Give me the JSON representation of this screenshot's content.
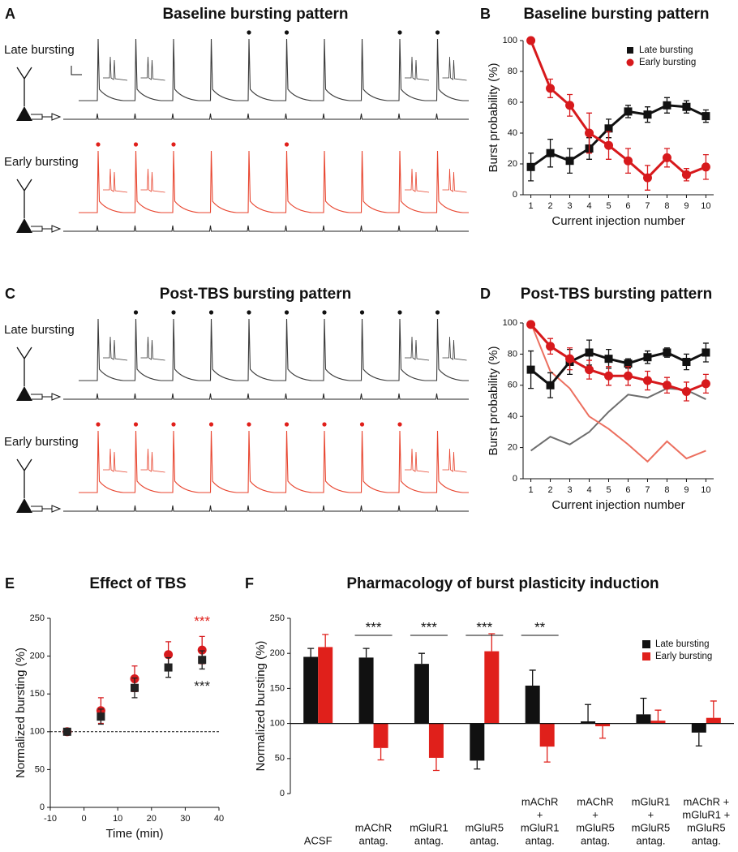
{
  "chart_data": [
    {
      "type": "traces",
      "panel": "A",
      "title": "Baseline bursting pattern",
      "injections": 10,
      "rows": [
        {
          "label": "Late bursting",
          "color": "#3a3a3a",
          "dot_color": "#111111",
          "bursts": [
            5,
            6,
            9,
            10
          ]
        },
        {
          "label": "Early bursting",
          "color": "#e8452f",
          "dot_color": "#e0201b",
          "bursts": [
            1,
            2,
            3,
            6
          ]
        }
      ]
    },
    {
      "type": "line",
      "panel": "B",
      "title": "Baseline bursting pattern",
      "x_label": "Current injection number",
      "y_label": "Burst probability (%)",
      "x": [
        1,
        2,
        3,
        4,
        5,
        6,
        7,
        8,
        9,
        10
      ],
      "xlim": [
        0.6,
        10.4
      ],
      "xticks": [
        1,
        2,
        3,
        4,
        5,
        6,
        7,
        8,
        9,
        10
      ],
      "ylim": [
        0,
        100
      ],
      "yticks": [
        0,
        20,
        40,
        60,
        80,
        100
      ],
      "legend": "upper right",
      "series": [
        {
          "name": "Late bursting",
          "color": "#111111",
          "marker": "square",
          "values": [
            18,
            27,
            22,
            30,
            43,
            54,
            52,
            58,
            57,
            51
          ],
          "errors": [
            9,
            9,
            8,
            7,
            6,
            4,
            5,
            5,
            4,
            4
          ]
        },
        {
          "name": "Early bursting",
          "color": "#d7191c",
          "marker": "circle",
          "values": [
            100,
            69,
            58,
            40,
            32,
            22,
            11,
            24,
            13,
            18
          ],
          "errors": [
            0,
            6,
            7,
            13,
            9,
            8,
            8,
            6,
            4,
            8
          ]
        }
      ]
    },
    {
      "type": "traces",
      "panel": "C",
      "title": "Post-TBS bursting pattern",
      "injections": 10,
      "rows": [
        {
          "label": "Late bursting",
          "color": "#3a3a3a",
          "dot_color": "#111111",
          "bursts": [
            2,
            3,
            4,
            5,
            6,
            7,
            8,
            9,
            10
          ]
        },
        {
          "label": "Early bursting",
          "color": "#e8452f",
          "dot_color": "#e0201b",
          "bursts": [
            1,
            2,
            3,
            4,
            5,
            6,
            7,
            8,
            9
          ]
        }
      ]
    },
    {
      "type": "line",
      "panel": "D",
      "title": "Post-TBS bursting pattern",
      "x_label": "Current injection number",
      "y_label": "Burst probability (%)",
      "x": [
        1,
        2,
        3,
        4,
        5,
        6,
        7,
        8,
        9,
        10
      ],
      "xlim": [
        0.6,
        10.4
      ],
      "xticks": [
        1,
        2,
        3,
        4,
        5,
        6,
        7,
        8,
        9,
        10
      ],
      "ylim": [
        0,
        100
      ],
      "yticks": [
        0,
        20,
        40,
        60,
        80,
        100
      ],
      "series": [
        {
          "color": "#6e6e6e",
          "marker": "none",
          "values": [
            18,
            27,
            22,
            30,
            43,
            54,
            52,
            58,
            57,
            51
          ]
        },
        {
          "color": "#ec6f5f",
          "marker": "none",
          "values": [
            100,
            69,
            58,
            40,
            32,
            22,
            11,
            24,
            13,
            18
          ]
        },
        {
          "color": "#111111",
          "marker": "square",
          "values": [
            70,
            60,
            75,
            81,
            77,
            74,
            78,
            81,
            75,
            81
          ],
          "errors": [
            12,
            8,
            8,
            8,
            6,
            3,
            4,
            3,
            5,
            6
          ]
        },
        {
          "color": "#d7191c",
          "marker": "circle",
          "values": [
            99,
            85,
            77,
            70,
            66,
            66,
            63,
            60,
            56,
            61
          ],
          "errors": [
            0,
            5,
            7,
            6,
            6,
            6,
            6,
            5,
            6,
            6
          ]
        }
      ]
    },
    {
      "type": "scatter",
      "panel": "E",
      "title": "Effect of TBS",
      "x_label": "Time (min)",
      "y_label": "Normalized bursting (%)",
      "x": [
        -5,
        5,
        15,
        25,
        35
      ],
      "xlim": [
        -10,
        40
      ],
      "xticks": [
        -10,
        0,
        10,
        20,
        30,
        40
      ],
      "ylim": [
        0,
        250
      ],
      "yticks": [
        0,
        50,
        100,
        150,
        200,
        250
      ],
      "reference_line": 100,
      "series": [
        {
          "color": "#d7191c",
          "marker": "circle",
          "values": [
            100,
            128,
            170,
            202,
            208
          ],
          "errors": [
            3,
            17,
            17,
            17,
            18
          ]
        },
        {
          "color": "#222222",
          "marker": "square",
          "values": [
            100,
            120,
            158,
            185,
            195
          ],
          "errors": [
            3,
            10,
            13,
            13,
            12
          ]
        }
      ],
      "annotations": [
        {
          "text": "***",
          "series": 0,
          "index": 4,
          "position": "above",
          "color": "#e0201b"
        },
        {
          "text": "***",
          "series": 1,
          "index": 4,
          "position": "below",
          "color": "#222222"
        }
      ]
    },
    {
      "type": "bar",
      "panel": "F",
      "title": "Pharmacology of burst plasticity induction",
      "y_label": "Normalized bursting (%)",
      "ylim": [
        0,
        250
      ],
      "yticks": [
        0,
        50,
        100,
        150,
        200,
        250
      ],
      "base": 100,
      "legend": "upper right",
      "categories": [
        [
          "ACSF"
        ],
        [
          "mAChR",
          "antag."
        ],
        [
          "mGluR1",
          "antag."
        ],
        [
          "mGluR5",
          "antag."
        ],
        [
          "mAChR",
          "+",
          "mGluR1",
          "antag."
        ],
        [
          "mAChR",
          "+",
          "mGluR5",
          "antag."
        ],
        [
          "mGluR1",
          "+",
          "mGluR5",
          "antag."
        ],
        [
          "mAChR +",
          "mGluR1 +",
          "mGluR5",
          "antag."
        ]
      ],
      "series": [
        {
          "name": "Late bursting",
          "color": "#111111",
          "values": [
            195,
            194,
            185,
            47,
            154,
            103,
            113,
            87
          ],
          "errors": [
            12,
            13,
            15,
            12,
            22,
            24,
            23,
            19
          ]
        },
        {
          "name": "Early bursting",
          "color": "#e0201b",
          "values": [
            209,
            65,
            51,
            203,
            67,
            96,
            104,
            108
          ],
          "errors": [
            18,
            17,
            18,
            25,
            22,
            17,
            15,
            24
          ]
        }
      ],
      "annotations": [
        {
          "text": "***",
          "category": 1
        },
        {
          "text": "***",
          "category": 2
        },
        {
          "text": "***",
          "category": 3
        },
        {
          "text": "**",
          "category": 4
        }
      ]
    }
  ]
}
